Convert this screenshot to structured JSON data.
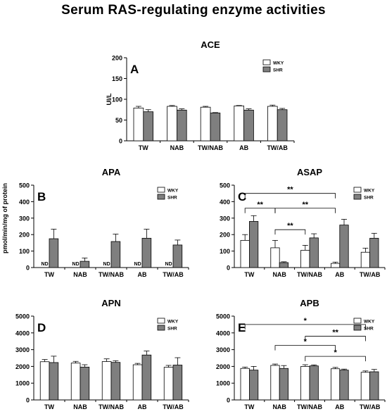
{
  "title": "Serum RAS-regulating enzyme activities",
  "shared_ylabel": "pmol/min/mg of protein",
  "colors": {
    "wky": "#ffffff",
    "shr": "#7f7f7f",
    "stroke": "#000000"
  },
  "chart_data": [
    {
      "type": "bar",
      "title": "ACE",
      "panel_letter": "A",
      "categories": [
        "TW",
        "NAB",
        "TW/NAB",
        "AB",
        "TW/AB"
      ],
      "series": [
        {
          "name": "WKY",
          "values": [
            79,
            83,
            81,
            84,
            83
          ],
          "errors": [
            4,
            2,
            2,
            1,
            3
          ]
        },
        {
          "name": "SHR",
          "values": [
            70,
            74,
            67,
            74,
            75
          ],
          "errors": [
            5,
            3,
            1,
            3,
            3
          ]
        }
      ],
      "ylabel": "UI/L",
      "ylim": [
        0,
        200
      ],
      "yticks": [
        0,
        50,
        100,
        150,
        200
      ],
      "legend": "top-right",
      "annotations": [],
      "significance": []
    },
    {
      "type": "bar",
      "title": "APA",
      "panel_letter": "B",
      "categories": [
        "TW",
        "NAB",
        "TW/NAB",
        "AB",
        "TW/AB"
      ],
      "series": [
        {
          "name": "WKY",
          "values": [
            0,
            0,
            0,
            0,
            0
          ],
          "errors": [
            0,
            0,
            0,
            0,
            0
          ]
        },
        {
          "name": "SHR",
          "values": [
            175,
            38,
            158,
            178,
            137
          ],
          "errors": [
            58,
            20,
            45,
            55,
            30
          ]
        }
      ],
      "ylabel": "",
      "ylim": [
        0,
        500
      ],
      "yticks": [
        0,
        100,
        200,
        300,
        400,
        500
      ],
      "legend": "top-right",
      "annotations": [
        "ND",
        "ND",
        "ND",
        "ND",
        "ND"
      ],
      "significance": []
    },
    {
      "type": "bar",
      "title": "ASAP",
      "panel_letter": "C",
      "categories": [
        "TW",
        "NAB",
        "TW/NAB",
        "AB",
        "TW/AB"
      ],
      "series": [
        {
          "name": "WKY",
          "values": [
            165,
            120,
            105,
            25,
            93
          ],
          "errors": [
            35,
            45,
            30,
            8,
            25
          ]
        },
        {
          "name": "SHR",
          "values": [
            280,
            30,
            180,
            258,
            178
          ],
          "errors": [
            35,
            5,
            25,
            35,
            30
          ]
        }
      ],
      "ylabel": "",
      "ylim": [
        0,
        500
      ],
      "yticks": [
        0,
        100,
        200,
        300,
        400,
        500
      ],
      "legend": "top-right",
      "annotations": [],
      "significance": [
        {
          "label": "**",
          "from": 0,
          "to": 3,
          "y": 450
        },
        {
          "label": "**",
          "from": 0,
          "to": 1,
          "y": 360
        },
        {
          "label": "**",
          "from": 1,
          "to": 3,
          "y": 360
        },
        {
          "label": "**",
          "from": 1,
          "to": 2,
          "y": 230
        }
      ]
    },
    {
      "type": "bar",
      "title": "APN",
      "panel_letter": "D",
      "categories": [
        "TW",
        "NAB",
        "TW/NAB",
        "AB",
        "TW/AB"
      ],
      "series": [
        {
          "name": "WKY",
          "values": [
            2280,
            2200,
            2290,
            2100,
            1950
          ],
          "errors": [
            130,
            100,
            160,
            80,
            110
          ]
        },
        {
          "name": "SHR",
          "values": [
            2230,
            1960,
            2240,
            2680,
            2080
          ],
          "errors": [
            380,
            140,
            100,
            240,
            440
          ]
        }
      ],
      "ylabel": "",
      "ylim": [
        0,
        5000
      ],
      "yticks": [
        0,
        1000,
        2000,
        3000,
        4000,
        5000
      ],
      "legend": "top-right",
      "annotations": [],
      "significance": []
    },
    {
      "type": "bar",
      "title": "APB",
      "panel_letter": "E",
      "categories": [
        "TW",
        "NAB",
        "TW/NAB",
        "AB",
        "TW/AB"
      ],
      "series": [
        {
          "name": "WKY",
          "values": [
            1880,
            2060,
            2000,
            1860,
            1650
          ],
          "errors": [
            80,
            80,
            100,
            80,
            80
          ]
        },
        {
          "name": "SHR",
          "values": [
            1780,
            1880,
            2030,
            1780,
            1680
          ],
          "errors": [
            220,
            170,
            60,
            60,
            140
          ]
        }
      ],
      "ylabel": "",
      "ylim": [
        0,
        5000
      ],
      "yticks": [
        0,
        1000,
        2000,
        3000,
        4000,
        5000
      ],
      "legend": "top-right",
      "annotations": [],
      "significance": [
        {
          "label": "*",
          "from": 0,
          "to": 4,
          "y": 4500
        },
        {
          "label": "**",
          "from": 2,
          "to": 4,
          "y": 3800
        },
        {
          "label": "*",
          "from": 1,
          "to": 3,
          "y": 3250
        },
        {
          "label": "*",
          "from": 2,
          "to": 4,
          "y": 2600
        }
      ]
    }
  ]
}
